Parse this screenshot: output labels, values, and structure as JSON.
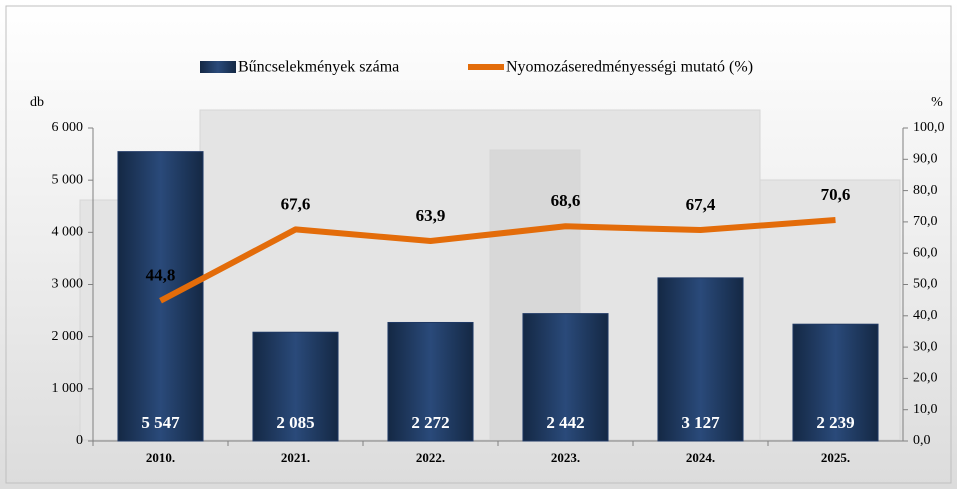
{
  "chart_data": {
    "type": "bar-line",
    "categories": [
      "2010.",
      "2021.",
      "2022.",
      "2023.",
      "2024.",
      "2025."
    ],
    "y_unit": "db",
    "y2_unit": "%",
    "series": [
      {
        "name": "Bűncselekmények száma",
        "type": "bar",
        "color": "#1f3864",
        "values": [
          5547,
          2085,
          2272,
          2442,
          3127,
          2239
        ],
        "value_labels": [
          "5 547",
          "2 085",
          "2 272",
          "2 442",
          "3 127",
          "2 239"
        ]
      },
      {
        "name": "Nyomozáseredményességi mutató (%)",
        "type": "line",
        "color": "#e36c0a",
        "axis": "y2",
        "values": [
          44.8,
          67.6,
          63.9,
          68.6,
          67.4,
          70.6
        ],
        "value_labels": [
          "44,8",
          "67,6",
          "63,9",
          "68,6",
          "67,4",
          "70,6"
        ]
      }
    ],
    "ylim": [
      0,
      6000
    ],
    "yticks": [
      {
        "value": 0,
        "label": "0"
      },
      {
        "value": 1000,
        "label": "1 000"
      },
      {
        "value": 2000,
        "label": "2 000"
      },
      {
        "value": 3000,
        "label": "3 000"
      },
      {
        "value": 4000,
        "label": "4 000"
      },
      {
        "value": 5000,
        "label": "5 000"
      },
      {
        "value": 6000,
        "label": "6 000"
      }
    ],
    "y2lim": [
      0,
      100
    ],
    "y2ticks": [
      {
        "value": 0,
        "label": "0,0"
      },
      {
        "value": 10,
        "label": "10,0"
      },
      {
        "value": 20,
        "label": "20,0"
      },
      {
        "value": 30,
        "label": "30,0"
      },
      {
        "value": 40,
        "label": "40,0"
      },
      {
        "value": 50,
        "label": "50,0"
      },
      {
        "value": 60,
        "label": "60,0"
      },
      {
        "value": 70,
        "label": "70,0"
      },
      {
        "value": 80,
        "label": "80,0"
      },
      {
        "value": 90,
        "label": "90,0"
      },
      {
        "value": 100,
        "label": "100,0"
      }
    ],
    "legend": "top"
  }
}
